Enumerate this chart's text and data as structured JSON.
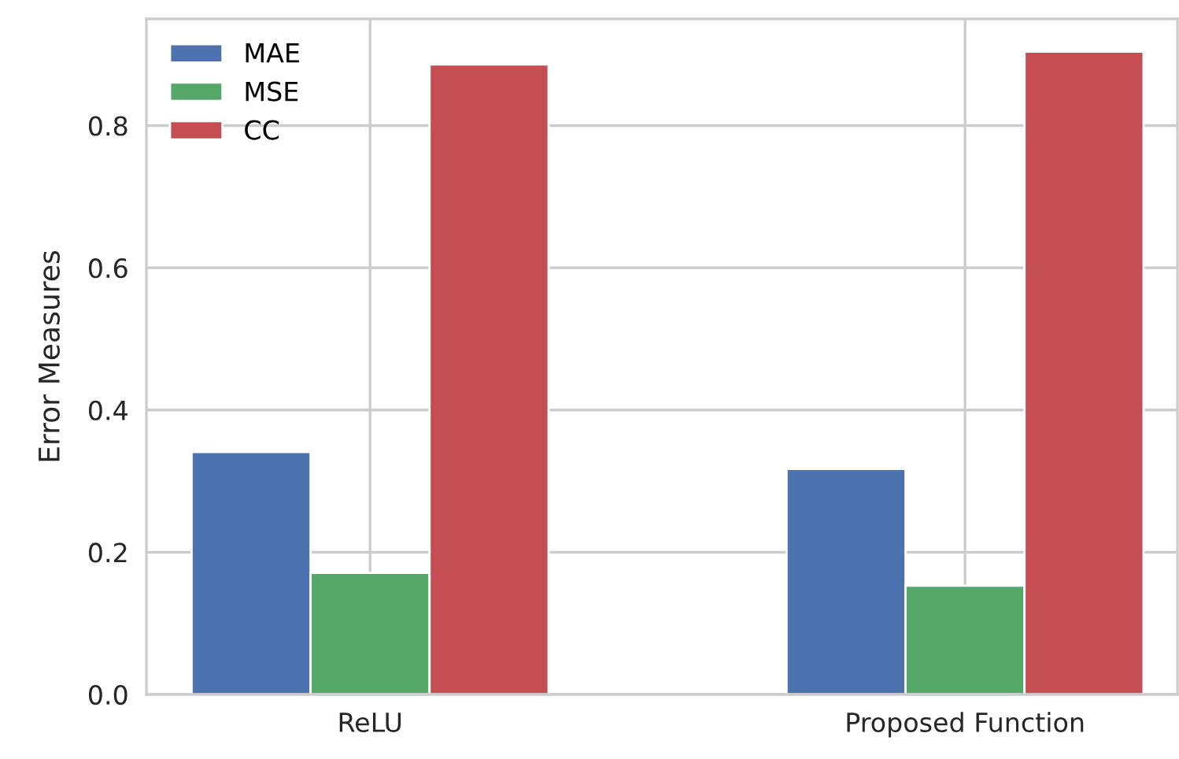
{
  "chart_data": {
    "type": "bar",
    "ylabel": "Error Measures",
    "categories": [
      "ReLU",
      "Proposed Function"
    ],
    "series": [
      {
        "name": "MAE",
        "color": "#4c72b0",
        "values": [
          0.341,
          0.317
        ]
      },
      {
        "name": "MSE",
        "color": "#55a868",
        "values": [
          0.171,
          0.153
        ]
      },
      {
        "name": "CC",
        "color": "#c44e52",
        "values": [
          0.886,
          0.904
        ]
      }
    ],
    "ylim": [
      0,
      0.95
    ],
    "yticks": [
      {
        "value": 0,
        "label": "0.0"
      },
      0.2,
      0.4,
      0.6,
      0.8
    ],
    "grid": true,
    "legend": "top left"
  }
}
